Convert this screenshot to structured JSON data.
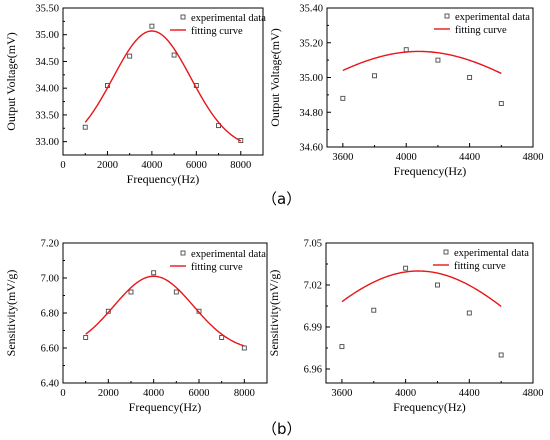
{
  "captions": {
    "a": "（a）",
    "b": "（b）"
  },
  "colors": {
    "fit": "#e8161a",
    "marker": "#4a4a4a",
    "axis": "#000000"
  },
  "chart_data": [
    {
      "id": "voltage-wide",
      "type": "scatter",
      "xlabel": "Frequency(Hz)",
      "ylabel": "Output Voltage(mV)",
      "xlim": [
        0,
        9000
      ],
      "ylim": [
        32.75,
        35.5
      ],
      "xticks": [
        0,
        2000,
        4000,
        6000,
        8000
      ],
      "xtick_labels": [
        "0",
        "2000",
        "4000",
        "6000",
        "8000"
      ],
      "yticks": [
        33.0,
        33.5,
        34.0,
        34.5,
        35.0,
        35.5
      ],
      "ytick_labels": [
        "33.00",
        "33.50",
        "34.00",
        "34.50",
        "35.00",
        "35.50"
      ],
      "legend_position": "top-right",
      "series": [
        {
          "name": "experimental data",
          "kind": "markers",
          "x": [
            1000,
            2000,
            3000,
            4000,
            5000,
            6000,
            7000,
            8000
          ],
          "y": [
            33.27,
            34.05,
            34.6,
            35.16,
            34.62,
            34.05,
            33.3,
            33.02
          ]
        },
        {
          "name": "fitting curve",
          "kind": "line",
          "model": {
            "base": 32.85,
            "amp": 2.22,
            "center": 4000,
            "sigma": 1750,
            "from": 1000,
            "to": 8000
          }
        }
      ]
    },
    {
      "id": "voltage-narrow",
      "type": "scatter",
      "xlabel": "Frequency(Hz)",
      "ylabel": "Output Voltage(mV)",
      "xlim": [
        3500,
        4800
      ],
      "ylim": [
        34.6,
        35.4
      ],
      "xticks": [
        3600,
        4000,
        4400,
        4800
      ],
      "xtick_labels": [
        "3600",
        "4000",
        "4400",
        "4800"
      ],
      "yticks": [
        34.6,
        34.8,
        35.0,
        35.2,
        35.4
      ],
      "ytick_labels": [
        "34.60",
        "34.80",
        "35.00",
        "35.20",
        "35.40"
      ],
      "legend_position": "top-right",
      "series": [
        {
          "name": "experimental data",
          "kind": "markers",
          "x": [
            3600,
            3800,
            4000,
            4200,
            4400,
            4600
          ],
          "y": [
            34.88,
            35.01,
            35.16,
            35.1,
            35.0,
            34.85
          ]
        },
        {
          "name": "fitting curve",
          "kind": "line",
          "model": {
            "base": 34.5,
            "amp": 0.65,
            "center": 4080,
            "sigma": 790,
            "from": 3600,
            "to": 4600
          }
        }
      ]
    },
    {
      "id": "sensitivity-wide",
      "type": "scatter",
      "xlabel": "Frequency(Hz)",
      "ylabel": "Sensitivity(mV/g)",
      "xlim": [
        0,
        9000
      ],
      "ylim": [
        6.4,
        7.2
      ],
      "xticks": [
        0,
        2000,
        4000,
        6000,
        8000
      ],
      "xtick_labels": [
        "0",
        "2000",
        "4000",
        "6000",
        "8000"
      ],
      "yticks": [
        6.4,
        6.6,
        6.8,
        7.0,
        7.2
      ],
      "ytick_labels": [
        "6.40",
        "6.60",
        "6.80",
        "7.00",
        "7.20"
      ],
      "legend_position": "top-right",
      "series": [
        {
          "name": "experimental data",
          "kind": "markers",
          "x": [
            1000,
            2000,
            3000,
            4000,
            5000,
            6000,
            7000,
            8000
          ],
          "y": [
            6.66,
            6.81,
            6.92,
            7.03,
            6.92,
            6.81,
            6.66,
            6.6
          ]
        },
        {
          "name": "fitting curve",
          "kind": "line",
          "model": {
            "base": 6.58,
            "amp": 0.43,
            "center": 4000,
            "sigma": 1750,
            "from": 1000,
            "to": 8000
          }
        }
      ]
    },
    {
      "id": "sensitivity-narrow",
      "type": "scatter",
      "xlabel": "Frequency(Hz)",
      "ylabel": "Sensitivity(mV/g)",
      "xlim": [
        3500,
        4800
      ],
      "ylim": [
        6.95,
        7.05
      ],
      "xticks": [
        3600,
        4000,
        4400,
        4800
      ],
      "xtick_labels": [
        "3600",
        "4000",
        "4400",
        "4800"
      ],
      "yticks": [
        6.96,
        6.99,
        7.02,
        7.05
      ],
      "ytick_labels": [
        "6.96",
        "6.99",
        "7.02",
        "7.05"
      ],
      "legend_position": "top-right",
      "series": [
        {
          "name": "experimental data",
          "kind": "markers",
          "x": [
            3600,
            3800,
            4000,
            4200,
            4400,
            4600
          ],
          "y": [
            6.976,
            7.002,
            7.032,
            7.02,
            7.0,
            6.97
          ]
        },
        {
          "name": "fitting curve",
          "kind": "line",
          "model": {
            "base": 6.9,
            "amp": 0.13,
            "center": 4080,
            "sigma": 790,
            "from": 3600,
            "to": 4600
          }
        }
      ]
    }
  ]
}
